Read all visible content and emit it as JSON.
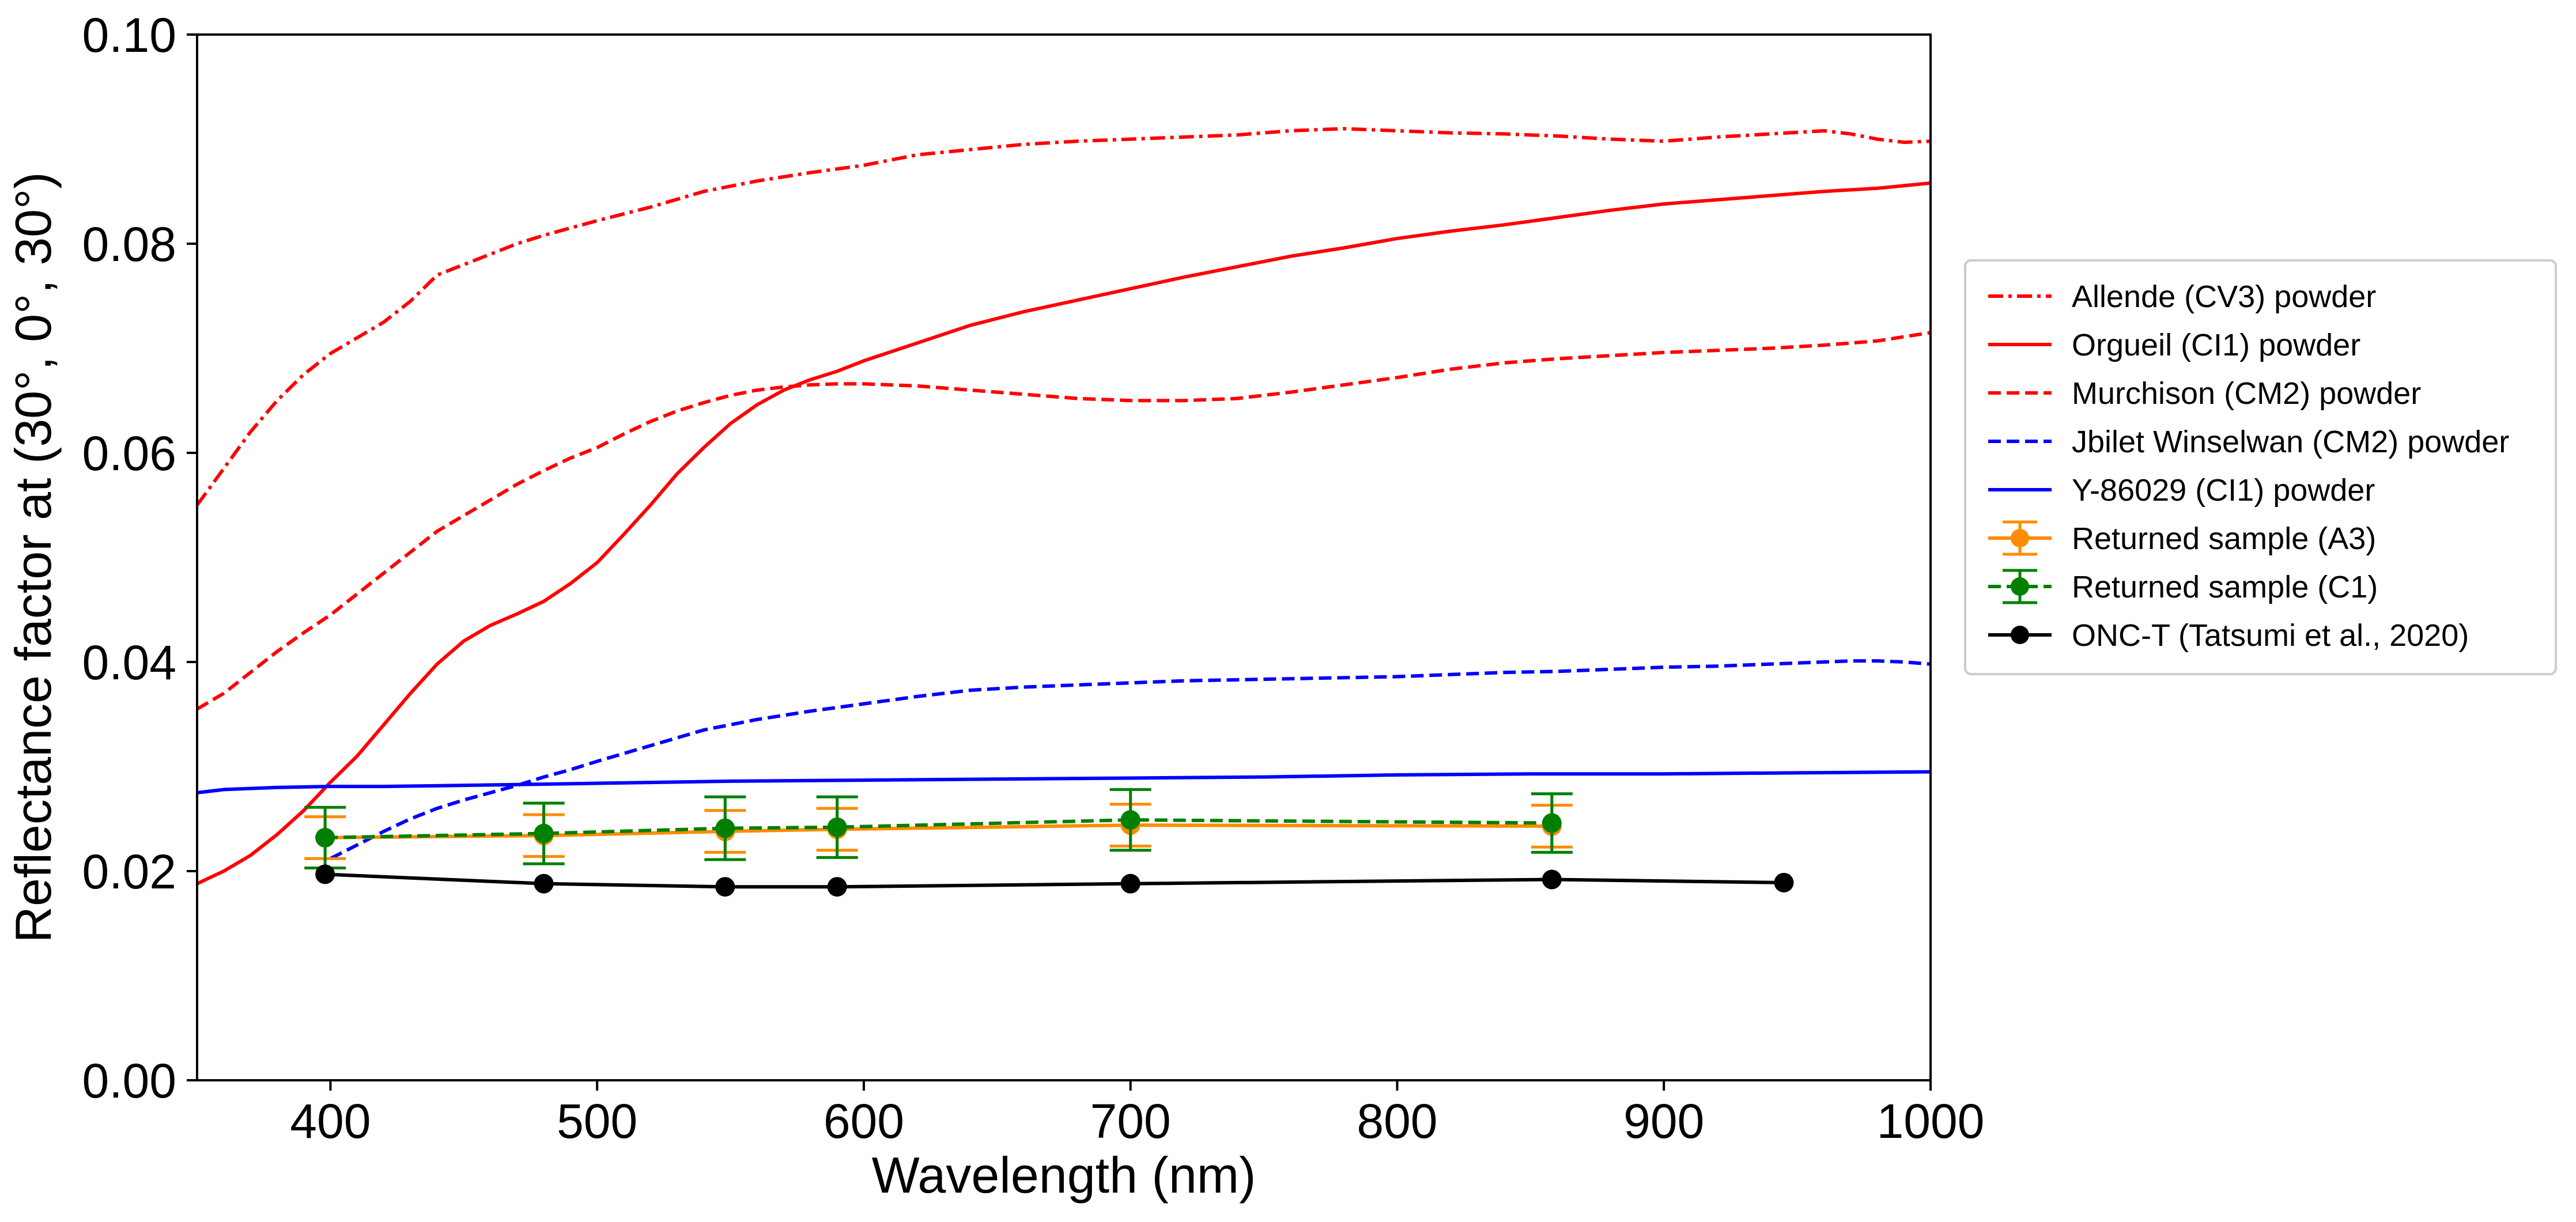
{
  "chart_data": {
    "type": "line",
    "xlabel": "Wavelength (nm)",
    "ylabel": "Reflectance factor at (30°, 0°, 30°)",
    "xlim": [
      350,
      1000
    ],
    "ylim": [
      0.0,
      0.1
    ],
    "x_ticks": [
      "400",
      "500",
      "600",
      "700",
      "800",
      "900",
      "1000"
    ],
    "y_ticks": [
      "0.00",
      "0.02",
      "0.04",
      "0.06",
      "0.08",
      "0.10"
    ],
    "grid": false,
    "legend_position": "right-outside",
    "series": [
      {
        "name": "Allende (CV3) powder",
        "color": "#ff0000",
        "style": "dashdot",
        "x": [
          350,
          360,
          370,
          380,
          390,
          400,
          410,
          420,
          430,
          440,
          450,
          460,
          470,
          480,
          490,
          500,
          520,
          540,
          560,
          580,
          600,
          620,
          640,
          660,
          680,
          700,
          720,
          740,
          760,
          780,
          800,
          820,
          840,
          860,
          880,
          900,
          920,
          940,
          960,
          970,
          980,
          990,
          1000
        ],
        "y": [
          0.055,
          0.0585,
          0.062,
          0.065,
          0.0675,
          0.0695,
          0.071,
          0.0725,
          0.0745,
          0.077,
          0.078,
          0.079,
          0.08,
          0.0808,
          0.0815,
          0.0822,
          0.0835,
          0.085,
          0.086,
          0.0868,
          0.0875,
          0.0885,
          0.089,
          0.0895,
          0.0898,
          0.09,
          0.0902,
          0.0904,
          0.0908,
          0.091,
          0.0908,
          0.0906,
          0.0905,
          0.0903,
          0.09,
          0.0898,
          0.0902,
          0.0905,
          0.0908,
          0.0905,
          0.09,
          0.0897,
          0.0898
        ]
      },
      {
        "name": "Orgueil (CI1) powder",
        "color": "#ff0000",
        "style": "solid",
        "x": [
          350,
          360,
          370,
          380,
          390,
          400,
          410,
          420,
          430,
          440,
          450,
          460,
          470,
          480,
          490,
          500,
          510,
          520,
          530,
          540,
          550,
          560,
          570,
          580,
          590,
          600,
          620,
          640,
          660,
          680,
          700,
          720,
          740,
          760,
          780,
          800,
          820,
          840,
          860,
          880,
          900,
          920,
          940,
          960,
          980,
          1000
        ],
        "y": [
          0.0188,
          0.02,
          0.0215,
          0.0235,
          0.0258,
          0.0285,
          0.031,
          0.034,
          0.037,
          0.0398,
          0.042,
          0.0435,
          0.0446,
          0.0458,
          0.0475,
          0.0495,
          0.0522,
          0.055,
          0.058,
          0.0605,
          0.0628,
          0.0646,
          0.066,
          0.067,
          0.0678,
          0.0688,
          0.0705,
          0.0722,
          0.0735,
          0.0746,
          0.0757,
          0.0768,
          0.0778,
          0.0788,
          0.0796,
          0.0805,
          0.0812,
          0.0818,
          0.0825,
          0.0832,
          0.0838,
          0.0842,
          0.0846,
          0.085,
          0.0853,
          0.0858
        ]
      },
      {
        "name": "Murchison (CM2) powder",
        "color": "#ff0000",
        "style": "dashed",
        "x": [
          350,
          360,
          370,
          380,
          390,
          400,
          410,
          420,
          430,
          440,
          450,
          460,
          470,
          480,
          490,
          500,
          510,
          520,
          530,
          540,
          550,
          560,
          570,
          580,
          590,
          600,
          620,
          640,
          660,
          680,
          700,
          720,
          740,
          760,
          780,
          800,
          820,
          840,
          860,
          880,
          900,
          920,
          940,
          960,
          980,
          1000
        ],
        "y": [
          0.0355,
          0.037,
          0.039,
          0.041,
          0.0428,
          0.0445,
          0.0465,
          0.0485,
          0.0505,
          0.0525,
          0.054,
          0.0555,
          0.057,
          0.0583,
          0.0595,
          0.0605,
          0.0618,
          0.063,
          0.064,
          0.0648,
          0.0655,
          0.066,
          0.0663,
          0.0665,
          0.0666,
          0.0666,
          0.0664,
          0.066,
          0.0656,
          0.0652,
          0.065,
          0.065,
          0.0652,
          0.0658,
          0.0665,
          0.0672,
          0.068,
          0.0686,
          0.069,
          0.0693,
          0.0696,
          0.0698,
          0.07,
          0.0703,
          0.0707,
          0.0715
        ]
      },
      {
        "name": "Jbilet Winselwan (CM2) powder",
        "color": "#0000ff",
        "style": "dashed",
        "x": [
          400,
          410,
          420,
          430,
          440,
          450,
          460,
          470,
          480,
          490,
          500,
          520,
          540,
          560,
          580,
          600,
          620,
          640,
          660,
          680,
          700,
          720,
          740,
          760,
          780,
          800,
          820,
          840,
          860,
          880,
          900,
          920,
          940,
          960,
          970,
          980,
          990,
          1000
        ],
        "y": [
          0.0212,
          0.0225,
          0.0238,
          0.025,
          0.026,
          0.0268,
          0.0275,
          0.0282,
          0.029,
          0.0297,
          0.0305,
          0.032,
          0.0335,
          0.0345,
          0.0353,
          0.036,
          0.0367,
          0.0373,
          0.0376,
          0.0378,
          0.038,
          0.0382,
          0.0383,
          0.0384,
          0.0385,
          0.0386,
          0.0388,
          0.039,
          0.0391,
          0.0393,
          0.0395,
          0.0396,
          0.0398,
          0.04,
          0.0401,
          0.0401,
          0.04,
          0.0398
        ]
      },
      {
        "name": "Y-86029 (CI1) powder",
        "color": "#0000ff",
        "style": "solid",
        "x": [
          350,
          360,
          380,
          400,
          420,
          450,
          500,
          550,
          600,
          650,
          700,
          750,
          800,
          850,
          900,
          950,
          1000
        ],
        "y": [
          0.0275,
          0.0278,
          0.028,
          0.0281,
          0.0281,
          0.0282,
          0.0284,
          0.0286,
          0.0287,
          0.0288,
          0.0289,
          0.029,
          0.0292,
          0.0293,
          0.0293,
          0.0294,
          0.0295
        ]
      },
      {
        "name": "Returned sample (A3)",
        "color": "#ff8c00",
        "style": "solid-marker-errorbar",
        "x": [
          398,
          480,
          548,
          590,
          700,
          858
        ],
        "y": [
          0.0232,
          0.0234,
          0.0238,
          0.024,
          0.0244,
          0.0243
        ],
        "err": [
          0.002,
          0.002,
          0.002,
          0.002,
          0.002,
          0.002
        ]
      },
      {
        "name": "Returned sample (C1)",
        "color": "#008000",
        "style": "dashed-marker-errorbar",
        "x": [
          398,
          480,
          548,
          590,
          700,
          858
        ],
        "y": [
          0.0232,
          0.0236,
          0.0241,
          0.0242,
          0.0249,
          0.0246
        ],
        "err": [
          0.0029,
          0.0029,
          0.003,
          0.0029,
          0.0029,
          0.0028
        ]
      },
      {
        "name": "ONC-T (Tatsumi et al., 2020)",
        "color": "#000000",
        "style": "solid-marker",
        "x": [
          398,
          480,
          548,
          590,
          700,
          858,
          945
        ],
        "y": [
          0.0197,
          0.0188,
          0.0185,
          0.0185,
          0.0188,
          0.0192,
          0.0189
        ]
      }
    ]
  }
}
